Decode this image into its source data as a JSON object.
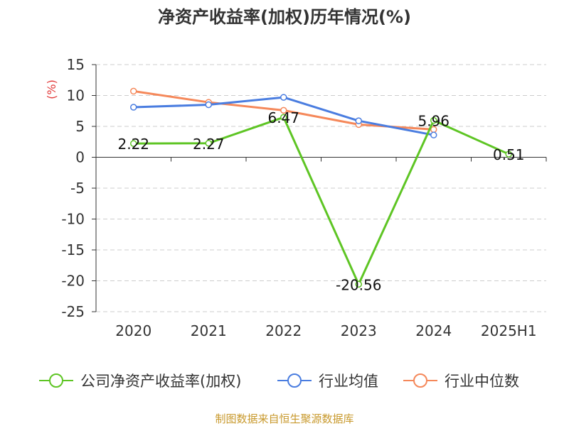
{
  "colors": {
    "company": "#5ec524",
    "industry_avg": "#4a7de0",
    "industry_median": "#f5885a",
    "ylabel": "#e23a3a",
    "axis": "#333333",
    "grid": "#cccccc",
    "source": "#c8992c"
  },
  "source_note": "制图数据来自恒生聚源数据库",
  "chart_data": {
    "type": "line",
    "title": "净资产收益率(加权)历年情况(%)",
    "ylabel": "(%)",
    "xlabel": "",
    "categories": [
      "2020",
      "2021",
      "2022",
      "2023",
      "2024",
      "2025H1"
    ],
    "ylim": [
      -25,
      15
    ],
    "yticks": [
      15,
      10,
      5,
      0,
      -5,
      -10,
      -15,
      -20,
      -25
    ],
    "grid": true,
    "legend_position": "bottom",
    "series": [
      {
        "name": "公司净资产收益率(加权)",
        "values": [
          2.22,
          2.27,
          6.47,
          -20.56,
          5.96,
          0.51
        ],
        "labels": [
          "2.22",
          "2.27",
          "6.47",
          "-20.56",
          "5.96",
          "0.51"
        ]
      },
      {
        "name": "行业均值",
        "values": [
          8.1,
          8.5,
          9.7,
          5.9,
          3.6,
          null
        ]
      },
      {
        "name": "行业中位数",
        "values": [
          10.7,
          8.9,
          7.6,
          5.3,
          4.5,
          null
        ]
      }
    ]
  }
}
